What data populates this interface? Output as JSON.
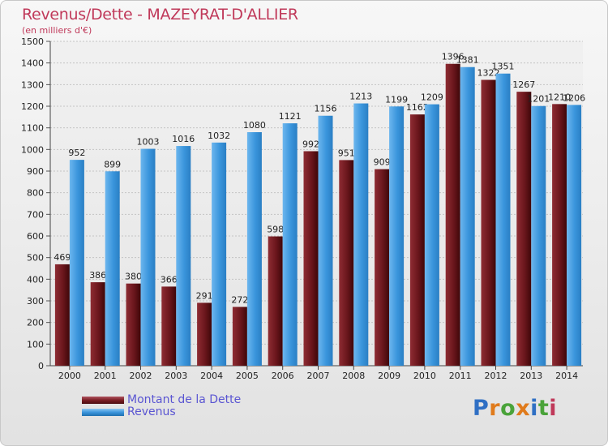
{
  "chart_data": {
    "type": "bar",
    "title": "Revenus/Dette - MAZEYRAT-D'ALLIER",
    "subtitle": "(en milliers d'€)",
    "categories": [
      "2000",
      "2001",
      "2002",
      "2003",
      "2004",
      "2005",
      "2006",
      "2007",
      "2008",
      "2009",
      "2010",
      "2011",
      "2012",
      "2013",
      "2014"
    ],
    "series": [
      {
        "name": "Montant de la Dette",
        "color": "#7a1e25",
        "values": [
          469,
          386,
          380,
          366,
          291,
          272,
          598,
          992,
          951,
          909,
          1162,
          1396,
          1322,
          1267,
          1210
        ],
        "labels": [
          "469",
          "386",
          "380",
          "366",
          "291",
          "272",
          "598",
          "992",
          "951",
          "909",
          "1162",
          "1396",
          "1322",
          "1267",
          "1210"
        ]
      },
      {
        "name": "Revenus",
        "color": "#3a95dc",
        "values": [
          952,
          899,
          1003,
          1016,
          1032,
          1080,
          1121,
          1156,
          1213,
          1199,
          1209,
          1381,
          1351,
          1201,
          1206
        ],
        "labels": [
          "952",
          "899",
          "1003",
          "1016",
          "1032",
          "1080",
          "1121",
          "1156",
          "1213",
          "1199",
          "1209",
          "1381",
          "1351",
          "1201",
          "1206"
        ]
      }
    ],
    "ylim": [
      0,
      1500
    ],
    "yticks": [
      0,
      100,
      200,
      300,
      400,
      500,
      600,
      700,
      800,
      900,
      1000,
      1100,
      1200,
      1300,
      1400,
      1500
    ],
    "xlabel": "",
    "ylabel": "",
    "grid": true,
    "legend_position": "bottom-left"
  },
  "legend": {
    "debt_label": "Montant de la Dette",
    "revenue_label": "Revenus"
  },
  "logo": {
    "letters": [
      "P",
      "r",
      "o",
      "x",
      "i",
      "t",
      "i"
    ],
    "colors": [
      "#2f6fc4",
      "#e07b1c",
      "#4aa33a",
      "#e07b1c",
      "#2f6fc4",
      "#4aa33a",
      "#c0395a"
    ]
  }
}
